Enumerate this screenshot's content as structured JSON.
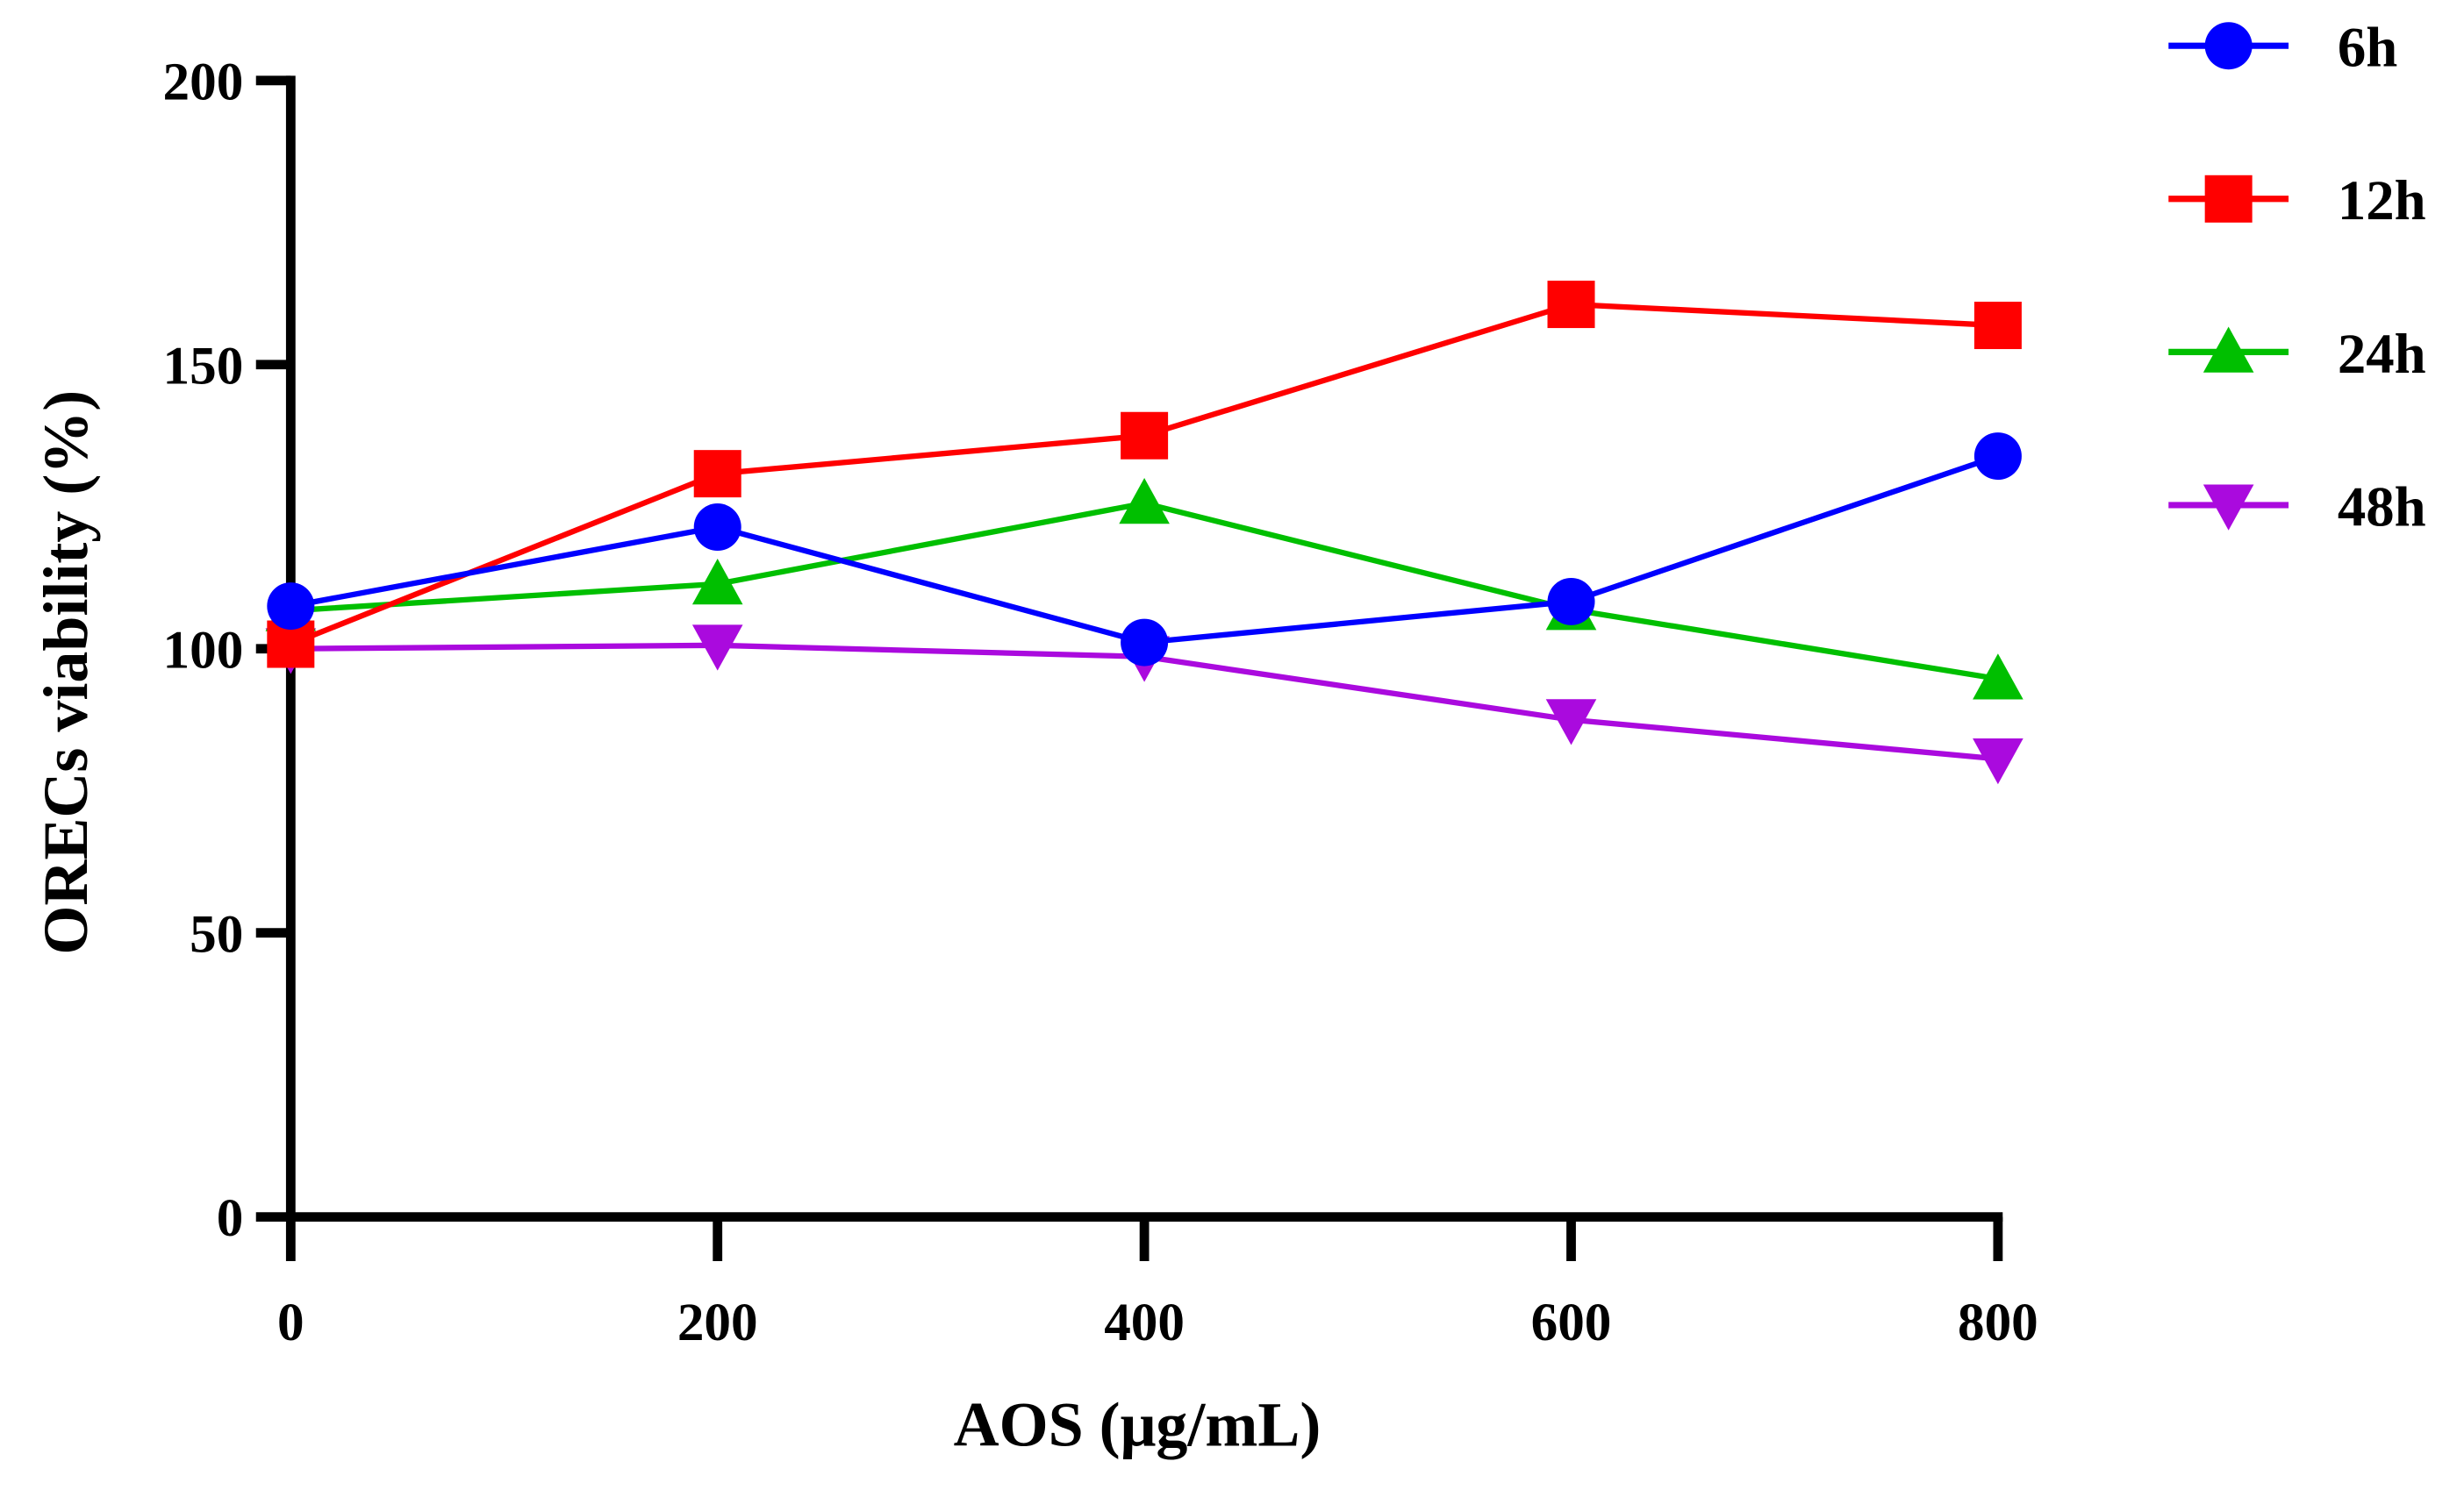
{
  "chart_data": {
    "type": "line",
    "title": "",
    "xlabel": "AOS (μg/mL)",
    "ylabel": "ORECs viability (%)",
    "x": [
      0,
      200,
      400,
      600,
      800
    ],
    "xticks": [
      "0",
      "200",
      "400",
      "600",
      "800"
    ],
    "yticks": [
      "0",
      "50",
      "100",
      "150",
      "200"
    ],
    "xlim": [
      0,
      800
    ],
    "ylim": [
      0,
      200
    ],
    "grid": false,
    "legend_position": "top-right-outside",
    "series": [
      {
        "name": "6h",
        "color": "#0000FF",
        "marker": "circle",
        "values": [
          107.5,
          121.4,
          101.1,
          108.3,
          133.9
        ]
      },
      {
        "name": "12h",
        "color": "#FF0000",
        "marker": "square",
        "values": [
          100.8,
          130.8,
          137.5,
          160.6,
          156.9
        ]
      },
      {
        "name": "24h",
        "color": "#00BF00",
        "marker": "triangle-up",
        "values": [
          106.7,
          111.4,
          125.6,
          106.9,
          94.7
        ]
      },
      {
        "name": "48h",
        "color": "#AA0ADE",
        "marker": "triangle-down",
        "values": [
          100.0,
          100.6,
          98.6,
          87.5,
          80.6
        ]
      }
    ]
  }
}
